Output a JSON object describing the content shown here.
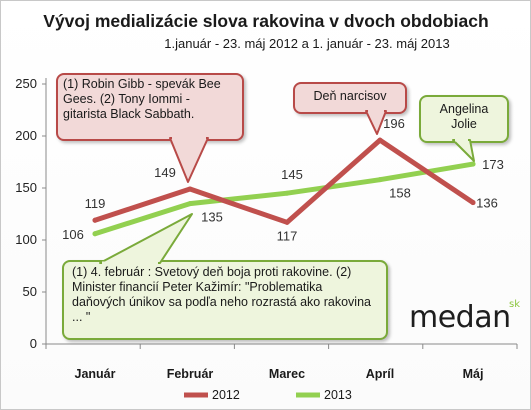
{
  "chart_data": {
    "type": "line",
    "title": "Vývoj medializácie slova rakovina v dvoch obdobiach",
    "subtitle": "1.január - 23. máj 2012 a 1. január - 23. máj 2013",
    "categories": [
      "Január",
      "Február",
      "Marec",
      "Apríl",
      "Máj"
    ],
    "ylim": [
      0,
      250
    ],
    "yticks": [
      "0",
      "50",
      "100",
      "150",
      "200",
      "250"
    ],
    "grid": false,
    "legend_position": "bottom",
    "series": [
      {
        "name": "2012",
        "color": "#c0504d",
        "values": [
          119,
          149,
          117,
          196,
          136
        ],
        "labels": [
          "119",
          "149",
          "117",
          "196",
          "136"
        ]
      },
      {
        "name": "2013",
        "color": "#92d050",
        "values": [
          106,
          135,
          145,
          158,
          173
        ],
        "labels": [
          "106",
          "135",
          "145",
          "158",
          "173"
        ]
      }
    ],
    "annotations": [
      {
        "text": "(1) Robin Gibb - spevák Bee Gees. (2) Tony Iommi - gitarista Black Sabbath."
      },
      {
        "text": "Deň narcisov"
      },
      {
        "text": "Angelina Jolie"
      },
      {
        "text": "(1) 4. február : Svetový deň boja proti rakovine. (2) Minister financií Peter Kažimír: \"Problematika daňových únikov sa podľa neho rozrastá ako rakovina ... \""
      }
    ]
  },
  "logo": {
    "text": "medan",
    "suffix": "sk"
  }
}
